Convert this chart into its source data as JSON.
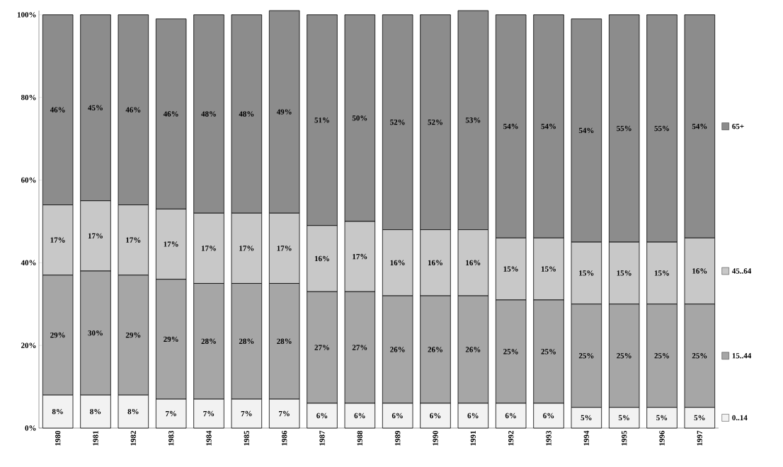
{
  "chart_data": {
    "type": "bar",
    "stacked": true,
    "categories": [
      "1980",
      "1981",
      "1982",
      "1983",
      "1984",
      "1985",
      "1986",
      "1987",
      "1988",
      "1989",
      "1990",
      "1991",
      "1992",
      "1993",
      "1994",
      "1995",
      "1996",
      "1997"
    ],
    "series": [
      {
        "name": "0..14",
        "color": "#f2f2f2",
        "values": [
          8,
          8,
          8,
          7,
          7,
          7,
          7,
          6,
          6,
          6,
          6,
          6,
          6,
          6,
          5,
          5,
          5,
          5
        ],
        "value_labels": [
          "8%",
          "8%",
          "8%",
          "7%",
          "7%",
          "7%",
          "7%",
          "6%",
          "6%",
          "6%",
          "6%",
          "6%",
          "6%",
          "6%",
          "5%",
          "5%",
          "5%",
          "5%"
        ]
      },
      {
        "name": "15..44",
        "color": "#a6a6a6",
        "values": [
          29,
          30,
          29,
          29,
          28,
          28,
          28,
          27,
          27,
          26,
          26,
          26,
          25,
          25,
          25,
          25,
          25,
          25
        ],
        "value_labels": [
          "29%",
          "30%",
          "29%",
          "29%",
          "28%",
          "28%",
          "28%",
          "27%",
          "27%",
          "26%",
          "26%",
          "26%",
          "25%",
          "25%",
          "25%",
          "25%",
          "25%",
          "25%"
        ]
      },
      {
        "name": "45..64",
        "color": "#c8c8c8",
        "values": [
          17,
          17,
          17,
          17,
          17,
          17,
          17,
          16,
          17,
          16,
          16,
          16,
          15,
          15,
          15,
          15,
          15,
          16
        ],
        "value_labels": [
          "17%",
          "17%",
          "17%",
          "17%",
          "17%",
          "17%",
          "17%",
          "16%",
          "17%",
          "16%",
          "16%",
          "16%",
          "15%",
          "15%",
          "15%",
          "15%",
          "15%",
          "16%"
        ]
      },
      {
        "name": "65+",
        "color": "#8c8c8c",
        "values": [
          46,
          45,
          46,
          46,
          48,
          48,
          49,
          51,
          50,
          52,
          52,
          53,
          54,
          54,
          54,
          55,
          55,
          54
        ],
        "value_labels": [
          "46%",
          "45%",
          "46%",
          "46%",
          "48%",
          "48%",
          "49%",
          "51%",
          "50%",
          "52%",
          "52%",
          "53%",
          "54%",
          "54%",
          "54%",
          "55%",
          "55%",
          "54%"
        ]
      }
    ],
    "legend": "right",
    "ylim": [
      0,
      101
    ],
    "yticks": [
      {
        "value": 0,
        "label": "0%"
      },
      {
        "value": 20,
        "label": "20%"
      },
      {
        "value": 40,
        "label": "40%"
      },
      {
        "value": 60,
        "label": "60%"
      },
      {
        "value": 80,
        "label": "80%"
      },
      {
        "value": 100,
        "label": "100%"
      }
    ]
  }
}
